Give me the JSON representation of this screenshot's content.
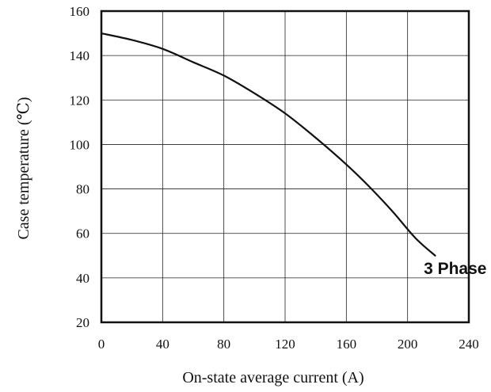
{
  "chart_data": {
    "type": "line",
    "title": "",
    "xlabel": "On-state average current (A)",
    "ylabel": "Case temperature (℃)",
    "xlim": [
      0,
      240
    ],
    "ylim": [
      20,
      160
    ],
    "x_ticks": [
      0,
      40,
      80,
      120,
      160,
      200,
      240
    ],
    "y_ticks": [
      20,
      40,
      60,
      80,
      100,
      120,
      140,
      160
    ],
    "grid": true,
    "annotation": "3 Phase",
    "series": [
      {
        "name": "",
        "color": "#111111",
        "x": [
          0,
          20,
          40,
          60,
          80,
          100,
          120,
          140,
          160,
          175,
          190,
          205,
          218
        ],
        "y": [
          150,
          147,
          143,
          137,
          131,
          123,
          114,
          103,
          91,
          81,
          70,
          58,
          50
        ]
      }
    ]
  }
}
